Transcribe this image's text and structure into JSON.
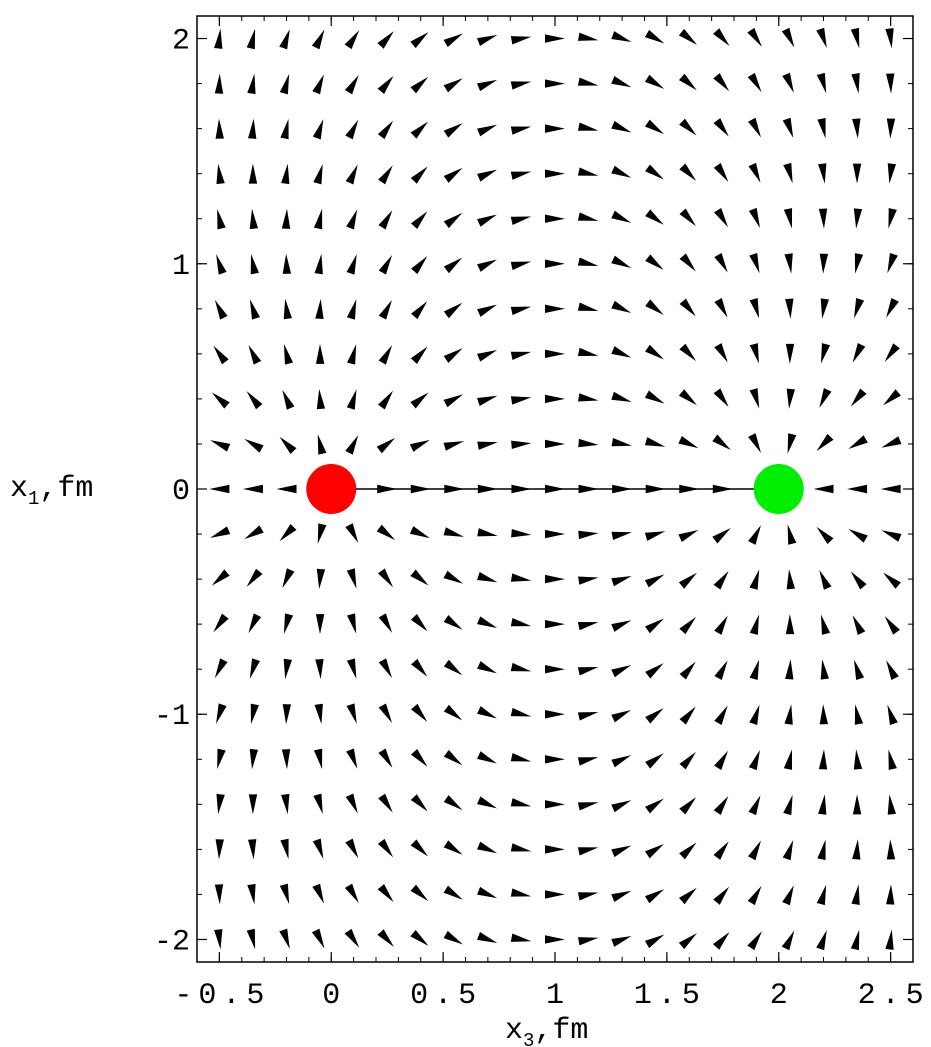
{
  "chart_data": {
    "type": "vector-field",
    "title": "",
    "xlabel": {
      "base": "x",
      "sub": "3",
      "unit": ",fm"
    },
    "ylabel": {
      "base": "x",
      "sub": "1",
      "unit": ",fm"
    },
    "xlim": [
      -0.6,
      2.6
    ],
    "ylim": [
      -2.1,
      2.1
    ],
    "x_ticks": [
      {
        "value": -0.5,
        "label": "-0.5"
      },
      {
        "value": 0,
        "label": "0"
      },
      {
        "value": 0.5,
        "label": "0.5"
      },
      {
        "value": 1,
        "label": "1"
      },
      {
        "value": 1.5,
        "label": "1.5"
      },
      {
        "value": 2,
        "label": "2"
      },
      {
        "value": 2.5,
        "label": "2.5"
      }
    ],
    "y_ticks": [
      {
        "value": 2,
        "label": "2"
      },
      {
        "value": 1,
        "label": "1"
      },
      {
        "value": 0,
        "label": "0"
      },
      {
        "value": -1,
        "label": "-1"
      },
      {
        "value": -2,
        "label": "-2"
      }
    ],
    "grid": false,
    "field": {
      "x_start": -0.5,
      "x_step": 0.15,
      "x_count": 21,
      "y_start": -2.0,
      "y_step": 0.2,
      "y_count": 21,
      "arrow_color": "#000000"
    },
    "charges": [
      {
        "x": 0,
        "y": 0,
        "color": "#ff0000"
      },
      {
        "x": 2,
        "y": 0,
        "color": "#00ee00"
      }
    ],
    "string": {
      "from": 0,
      "to": 2,
      "y": 0
    }
  }
}
